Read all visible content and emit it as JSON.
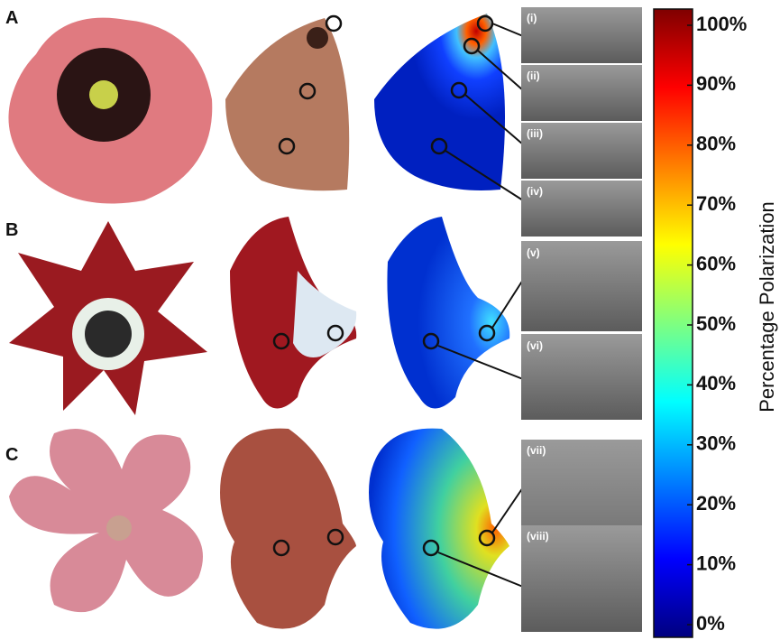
{
  "figure": {
    "panels": [
      {
        "label": "A",
        "insets": [
          "(i)",
          "(ii)",
          "(iii)",
          "(iv)"
        ]
      },
      {
        "label": "B",
        "insets": [
          "(v)",
          "(vi)"
        ]
      },
      {
        "label": "C",
        "insets": [
          "(vii)",
          "(viii)"
        ]
      }
    ],
    "colorbar": {
      "title": "Percentage Polarization",
      "lim": [
        0,
        100
      ],
      "ticks": [
        {
          "value": 0,
          "label": "0%"
        },
        {
          "value": 10,
          "label": "10%"
        },
        {
          "value": 20,
          "label": "20%"
        },
        {
          "value": 30,
          "label": "30%"
        },
        {
          "value": 40,
          "label": "40%"
        },
        {
          "value": 50,
          "label": "50%"
        },
        {
          "value": 60,
          "label": "60%"
        },
        {
          "value": 70,
          "label": "70%"
        },
        {
          "value": 80,
          "label": "80%"
        },
        {
          "value": 90,
          "label": "90%"
        },
        {
          "value": 100,
          "label": "100%"
        }
      ]
    }
  }
}
